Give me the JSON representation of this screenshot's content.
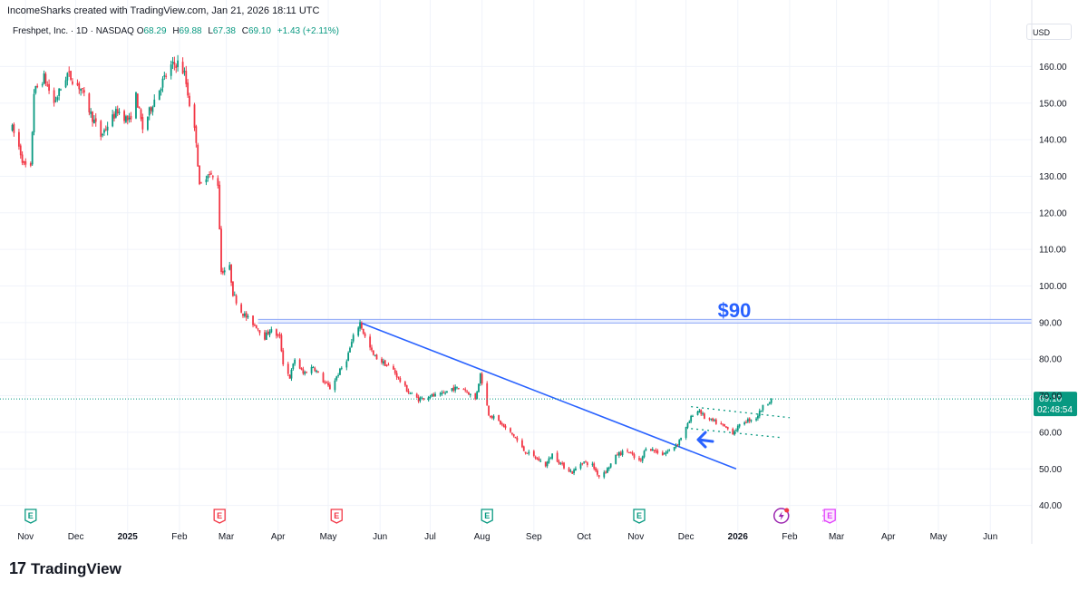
{
  "header": {
    "credit": "IncomeSharks created with TradingView.com, Jan 21, 2026 18:11 UTC"
  },
  "legend": {
    "symbol": "Freshpet, Inc. · 1D · NASDAQ",
    "o_label": "O",
    "o_value": "68.29",
    "h_label": "H",
    "h_value": "69.88",
    "l_label": "L",
    "l_value": "67.38",
    "c_label": "C",
    "c_value": "69.10",
    "change": "+1.43 (+2.11%)"
  },
  "currency": "USD",
  "annotation": {
    "price_label": "$90"
  },
  "price_badge": {
    "price": "69.10",
    "countdown": "02:48:54"
  },
  "brand": {
    "logo": "17",
    "name": "TradingView"
  },
  "colors": {
    "up": "#089981",
    "down": "#f23645",
    "trend": "#2962ff",
    "earnings_past_up": "#089981",
    "earnings_past_down": "#f23645",
    "earnings_future": "#e040fb"
  },
  "chart_data": {
    "type": "candlestick",
    "ylim": [
      36,
      168
    ],
    "y_ticks": [
      "40.00",
      "50.00",
      "60.00",
      "70.00",
      "80.00",
      "90.00",
      "100.00",
      "110.00",
      "120.00",
      "130.00",
      "140.00",
      "150.00",
      "160.00"
    ],
    "x_ticks": [
      "Nov",
      "Dec",
      "2025",
      "Feb",
      "Mar",
      "Apr",
      "May",
      "Jun",
      "Jul",
      "Aug",
      "Sep",
      "Oct",
      "Nov",
      "Dec",
      "2026",
      "Feb",
      "Mar",
      "Apr",
      "May",
      "Jun"
    ],
    "bold_x_ticks": [
      "2025",
      "2026"
    ],
    "price_path": [
      [
        "2024-10-24",
        143
      ],
      [
        "2024-10-28",
        138
      ],
      [
        "2024-10-31",
        133
      ],
      [
        "2024-11-04",
        132
      ],
      [
        "2024-11-06",
        153
      ],
      [
        "2024-11-12",
        157
      ],
      [
        "2024-11-18",
        150
      ],
      [
        "2024-11-26",
        158
      ],
      [
        "2024-12-04",
        154
      ],
      [
        "2024-12-10",
        147
      ],
      [
        "2024-12-16",
        141
      ],
      [
        "2024-12-20",
        144
      ],
      [
        "2024-12-26",
        148
      ],
      [
        "2025-01-02",
        145
      ],
      [
        "2025-01-06",
        152
      ],
      [
        "2025-01-10",
        143
      ],
      [
        "2025-01-16",
        150
      ],
      [
        "2025-01-22",
        156
      ],
      [
        "2025-01-27",
        160
      ],
      [
        "2025-01-31",
        161
      ],
      [
        "2025-02-04",
        158
      ],
      [
        "2025-02-07",
        150
      ],
      [
        "2025-02-11",
        140
      ],
      [
        "2025-02-13",
        127
      ],
      [
        "2025-02-18",
        131
      ],
      [
        "2025-02-24",
        128
      ],
      [
        "2025-02-26",
        104
      ],
      [
        "2025-03-03",
        105
      ],
      [
        "2025-03-05",
        98
      ],
      [
        "2025-03-10",
        93
      ],
      [
        "2025-03-14",
        91
      ],
      [
        "2025-03-19",
        89
      ],
      [
        "2025-03-24",
        86
      ],
      [
        "2025-03-27",
        88
      ],
      [
        "2025-04-02",
        86
      ],
      [
        "2025-04-04",
        79
      ],
      [
        "2025-04-08",
        75
      ],
      [
        "2025-04-11",
        80
      ],
      [
        "2025-04-16",
        76
      ],
      [
        "2025-04-22",
        78
      ],
      [
        "2025-04-28",
        74
      ],
      [
        "2025-05-02",
        72
      ],
      [
        "2025-05-07",
        76
      ],
      [
        "2025-05-12",
        80
      ],
      [
        "2025-05-16",
        86
      ],
      [
        "2025-05-20",
        90
      ],
      [
        "2025-05-23",
        86
      ],
      [
        "2025-05-28",
        81
      ],
      [
        "2025-06-03",
        79
      ],
      [
        "2025-06-09",
        77
      ],
      [
        "2025-06-13",
        74
      ],
      [
        "2025-06-18",
        71
      ],
      [
        "2025-06-24",
        69
      ],
      [
        "2025-06-30",
        70
      ],
      [
        "2025-07-07",
        70
      ],
      [
        "2025-07-14",
        72
      ],
      [
        "2025-07-21",
        72
      ],
      [
        "2025-07-28",
        69
      ],
      [
        "2025-07-31",
        76
      ],
      [
        "2025-08-05",
        65
      ],
      [
        "2025-08-11",
        63
      ],
      [
        "2025-08-15",
        61
      ],
      [
        "2025-08-20",
        59
      ],
      [
        "2025-08-26",
        55
      ],
      [
        "2025-09-02",
        53
      ],
      [
        "2025-09-08",
        51
      ],
      [
        "2025-09-12",
        54
      ],
      [
        "2025-09-18",
        51
      ],
      [
        "2025-09-24",
        49
      ],
      [
        "2025-09-30",
        52
      ],
      [
        "2025-10-06",
        51
      ],
      [
        "2025-10-10",
        48
      ],
      [
        "2025-10-15",
        50
      ],
      [
        "2025-10-21",
        54
      ],
      [
        "2025-10-27",
        55
      ],
      [
        "2025-10-31",
        53
      ],
      [
        "2025-11-04",
        52
      ],
      [
        "2025-11-07",
        56
      ],
      [
        "2025-11-12",
        55
      ],
      [
        "2025-11-17",
        54
      ],
      [
        "2025-11-21",
        55
      ],
      [
        "2025-11-26",
        57
      ],
      [
        "2025-12-02",
        62
      ],
      [
        "2025-12-05",
        65
      ],
      [
        "2025-12-09",
        66
      ],
      [
        "2025-12-12",
        64
      ],
      [
        "2025-12-17",
        63
      ],
      [
        "2025-12-22",
        62
      ],
      [
        "2025-12-29",
        60
      ],
      [
        "2026-01-05",
        63
      ],
      [
        "2026-01-12",
        64
      ],
      [
        "2026-01-16",
        67
      ],
      [
        "2026-01-21",
        69.1
      ]
    ],
    "horizontal_level": {
      "price": 90,
      "start": "2025-03-20",
      "label": "$90"
    },
    "trendline": {
      "points": [
        [
          "2025-05-20",
          90
        ],
        [
          "2025-12-31",
          50
        ]
      ]
    },
    "channel": {
      "upper": [
        [
          "2025-12-04",
          67
        ],
        [
          "2026-02-01",
          64
        ]
      ],
      "lower": [
        [
          "2025-12-04",
          61
        ],
        [
          "2026-01-28",
          58.5
        ]
      ]
    },
    "arrow_marker": {
      "date": "2025-12-05",
      "price": 57
    },
    "last_price": 69.1,
    "earnings_markers": [
      {
        "date": "2024-11-04",
        "type": "past_up"
      },
      {
        "date": "2025-02-25",
        "type": "past_down"
      },
      {
        "date": "2025-05-06",
        "type": "past_down"
      },
      {
        "date": "2025-08-04",
        "type": "past_up"
      },
      {
        "date": "2025-11-03",
        "type": "past_up"
      },
      {
        "date": "2026-01-27",
        "type": "event"
      },
      {
        "date": "2026-02-25",
        "type": "future"
      }
    ]
  }
}
